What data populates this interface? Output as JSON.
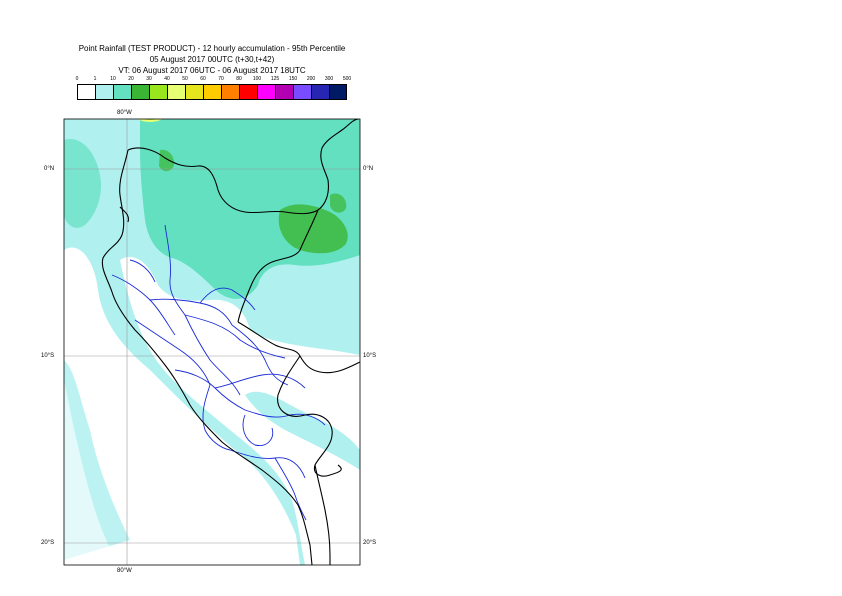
{
  "title": {
    "line1": "Point Rainfall (TEST PRODUCT) - 12 hourly accumulation - 95th Percentile",
    "line2": "05 August 2017 00UTC (t+30,t+42)",
    "line3": "VT: 06 August 2017 06UTC - 06 August 2017 18UTC"
  },
  "legend": {
    "ticks": [
      "0",
      "1",
      "10",
      "20",
      "30",
      "40",
      "50",
      "60",
      "70",
      "80",
      "100",
      "125",
      "150",
      "200",
      "300",
      "500"
    ],
    "colors": [
      "#ffffff",
      "#b0f1f0",
      "#63e0c0",
      "#3bb634",
      "#99e61f",
      "#e6ff73",
      "#e6e61f",
      "#ffcc00",
      "#ff8000",
      "#ff0000",
      "#ff00ff",
      "#b300b3",
      "#7a4cff",
      "#2626b3",
      "#001a66"
    ]
  },
  "axes": {
    "lat_0": "0°N",
    "lat_10": "10°S",
    "lat_20": "20°S",
    "lon_80": "80°W"
  }
}
